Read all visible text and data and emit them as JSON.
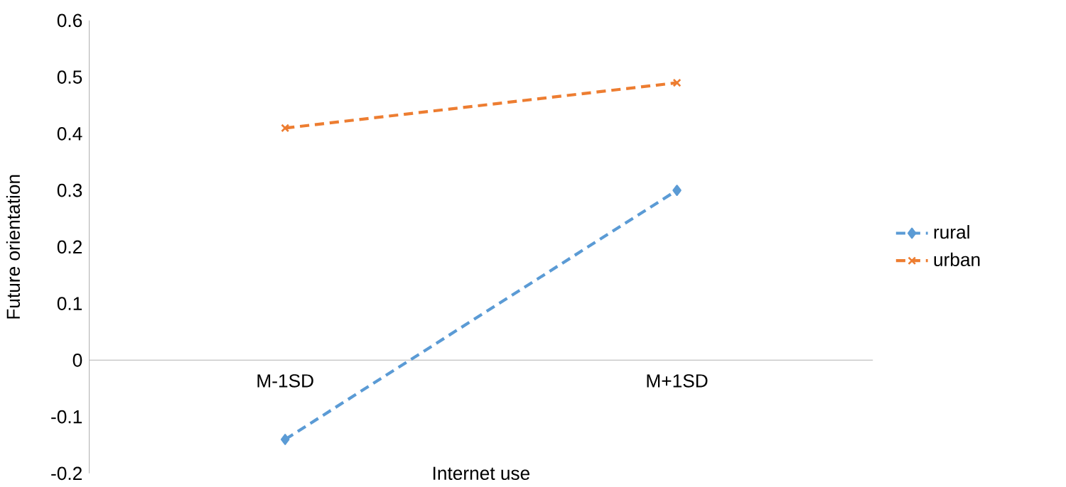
{
  "chart_data": {
    "type": "line",
    "xlabel": "Internet use",
    "ylabel": "Future orientation",
    "categories": [
      "M-1SD",
      "M+1SD"
    ],
    "series": [
      {
        "name": "rural",
        "color": "#5b9bd5",
        "values": [
          -0.14,
          0.3
        ],
        "marker": "diamond"
      },
      {
        "name": "urban",
        "color": "#ed7d31",
        "values": [
          0.41,
          0.49
        ],
        "marker": "cross"
      }
    ],
    "ylim": [
      -0.2,
      0.6
    ],
    "yticks": [
      -0.2,
      -0.1,
      0,
      0.1,
      0.2,
      0.3,
      0.4,
      0.5,
      0.6
    ],
    "legend": "right",
    "line_style": "dashed",
    "grid": false
  }
}
